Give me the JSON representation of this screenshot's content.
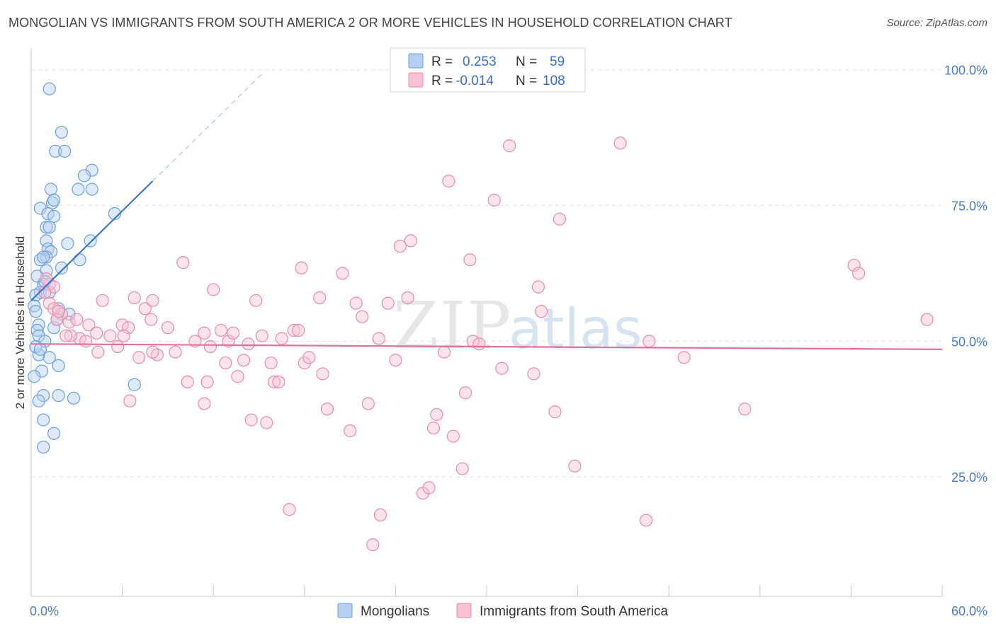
{
  "title": "MONGOLIAN VS IMMIGRANTS FROM SOUTH AMERICA 2 OR MORE VEHICLES IN HOUSEHOLD CORRELATION CHART",
  "source": "Source: ZipAtlas.com",
  "watermark": {
    "zip": "ZIP",
    "atlas": "atlas"
  },
  "chart_data": {
    "type": "scatter",
    "title": "MONGOLIAN VS IMMIGRANTS FROM SOUTH AMERICA 2 OR MORE VEHICLES IN HOUSEHOLD CORRELATION CHART",
    "xlabel": "",
    "ylabel": "2 or more Vehicles in Household",
    "xlim": [
      0,
      60
    ],
    "ylim": [
      3,
      104
    ],
    "x_tick_labels": {
      "min": "0.0%",
      "max": "60.0%"
    },
    "y_ticks": [
      {
        "value": 25,
        "label": "25.0%"
      },
      {
        "value": 50,
        "label": "50.0%"
      },
      {
        "value": 75,
        "label": "75.0%"
      },
      {
        "value": 100,
        "label": "100.0%"
      }
    ],
    "legend": {
      "r_label": "R =",
      "n_label": "N =",
      "entries": [
        {
          "r": "0.253",
          "n": "59"
        },
        {
          "r": "-0.014",
          "n": "108"
        }
      ]
    },
    "series": [
      {
        "name": "Mongolians",
        "color": "#6a9fe0",
        "fill": "#b6cff2",
        "trend": {
          "x0": 0,
          "y0": 57.5,
          "x1": 8.0,
          "y1": 79.5,
          "dash_to_x": 15.3,
          "dash_to_y": 99.5,
          "color": "#3a78d0"
        },
        "points": [
          [
            1.2,
            96.5
          ],
          [
            2.0,
            88.5
          ],
          [
            1.6,
            85.0
          ],
          [
            2.2,
            85.0
          ],
          [
            4.0,
            81.5
          ],
          [
            3.5,
            80.5
          ],
          [
            1.3,
            78.0
          ],
          [
            3.1,
            78.0
          ],
          [
            4.0,
            78.0
          ],
          [
            1.4,
            75.5
          ],
          [
            1.5,
            76.0
          ],
          [
            0.6,
            74.5
          ],
          [
            1.1,
            73.5
          ],
          [
            1.5,
            73.0
          ],
          [
            1.0,
            71.0
          ],
          [
            1.2,
            71.0
          ],
          [
            5.5,
            73.5
          ],
          [
            1.0,
            68.5
          ],
          [
            2.4,
            68.0
          ],
          [
            3.9,
            68.5
          ],
          [
            1.1,
            67.0
          ],
          [
            1.3,
            66.5
          ],
          [
            1.0,
            65.5
          ],
          [
            0.6,
            65.0
          ],
          [
            0.8,
            65.5
          ],
          [
            3.2,
            65.0
          ],
          [
            1.0,
            63.0
          ],
          [
            0.8,
            60.5
          ],
          [
            0.6,
            59.0
          ],
          [
            1.2,
            59.0
          ],
          [
            0.3,
            58.5
          ],
          [
            0.2,
            56.5
          ],
          [
            1.8,
            56.0
          ],
          [
            2.5,
            55.0
          ],
          [
            0.3,
            55.5
          ],
          [
            0.5,
            53.0
          ],
          [
            0.4,
            52.0
          ],
          [
            0.5,
            51.0
          ],
          [
            0.9,
            50.0
          ],
          [
            0.5,
            47.5
          ],
          [
            1.2,
            47.0
          ],
          [
            1.8,
            45.5
          ],
          [
            0.7,
            44.5
          ],
          [
            0.2,
            43.5
          ],
          [
            6.8,
            42.0
          ],
          [
            0.8,
            40.0
          ],
          [
            1.8,
            40.0
          ],
          [
            2.8,
            39.5
          ],
          [
            0.5,
            39.0
          ],
          [
            0.8,
            35.5
          ],
          [
            1.5,
            33.0
          ],
          [
            0.8,
            30.5
          ],
          [
            0.3,
            49.0
          ],
          [
            0.6,
            48.5
          ],
          [
            1.5,
            52.5
          ],
          [
            0.9,
            61.0
          ],
          [
            2.0,
            63.5
          ],
          [
            0.4,
            62.0
          ],
          [
            1.7,
            54.0
          ]
        ]
      },
      {
        "name": "Immigrants from South America",
        "color": "#e98aaa",
        "fill": "#f7c3d3",
        "trend": {
          "x0": 0,
          "y0": 49.5,
          "x1": 60,
          "y1": 48.5,
          "color": "#e2709a"
        },
        "points": [
          [
            1.2,
            60.5
          ],
          [
            1.0,
            61.5
          ],
          [
            1.5,
            60.0
          ],
          [
            0.9,
            59.0
          ],
          [
            1.2,
            57.0
          ],
          [
            1.5,
            56.0
          ],
          [
            2.0,
            55.0
          ],
          [
            1.7,
            54.0
          ],
          [
            2.5,
            53.5
          ],
          [
            3.0,
            54.0
          ],
          [
            3.8,
            53.0
          ],
          [
            4.7,
            57.5
          ],
          [
            5.2,
            51.0
          ],
          [
            4.3,
            51.5
          ],
          [
            3.2,
            50.5
          ],
          [
            2.6,
            51.0
          ],
          [
            3.6,
            50.0
          ],
          [
            4.4,
            48.0
          ],
          [
            6.0,
            53.0
          ],
          [
            6.4,
            52.5
          ],
          [
            6.1,
            51.0
          ],
          [
            5.7,
            49.0
          ],
          [
            6.8,
            58.0
          ],
          [
            7.5,
            56.0
          ],
          [
            7.9,
            54.0
          ],
          [
            8.0,
            57.5
          ],
          [
            7.1,
            47.0
          ],
          [
            8.3,
            47.5
          ],
          [
            9.0,
            52.5
          ],
          [
            8.0,
            48.0
          ],
          [
            9.5,
            48.0
          ],
          [
            10.0,
            64.5
          ],
          [
            10.3,
            42.5
          ],
          [
            10.8,
            50.0
          ],
          [
            11.4,
            51.5
          ],
          [
            11.4,
            38.5
          ],
          [
            11.6,
            42.5
          ],
          [
            11.8,
            49.0
          ],
          [
            12.0,
            59.5
          ],
          [
            12.5,
            52.0
          ],
          [
            12.8,
            46.0
          ],
          [
            13.0,
            50.0
          ],
          [
            13.3,
            51.5
          ],
          [
            13.6,
            43.5
          ],
          [
            14.3,
            49.5
          ],
          [
            14.0,
            46.5
          ],
          [
            14.5,
            35.5
          ],
          [
            14.8,
            57.5
          ],
          [
            15.2,
            51.0
          ],
          [
            15.5,
            35.0
          ],
          [
            15.8,
            46.0
          ],
          [
            16.0,
            42.5
          ],
          [
            16.3,
            42.5
          ],
          [
            16.5,
            50.5
          ],
          [
            17.0,
            19.0
          ],
          [
            17.3,
            52.0
          ],
          [
            17.6,
            52.0
          ],
          [
            17.8,
            63.5
          ],
          [
            18.0,
            46.0
          ],
          [
            18.3,
            47.0
          ],
          [
            19.0,
            58.0
          ],
          [
            19.2,
            44.0
          ],
          [
            19.5,
            37.5
          ],
          [
            20.5,
            62.5
          ],
          [
            21.0,
            33.5
          ],
          [
            21.4,
            57.0
          ],
          [
            21.8,
            54.5
          ],
          [
            22.2,
            38.5
          ],
          [
            22.5,
            12.5
          ],
          [
            22.9,
            50.5
          ],
          [
            23.0,
            18.0
          ],
          [
            23.5,
            57.0
          ],
          [
            24.0,
            46.5
          ],
          [
            24.3,
            67.5
          ],
          [
            24.8,
            58.0
          ],
          [
            25.0,
            68.5
          ],
          [
            25.8,
            22.0
          ],
          [
            26.2,
            23.0
          ],
          [
            26.5,
            34.0
          ],
          [
            26.7,
            36.5
          ],
          [
            27.2,
            48.0
          ],
          [
            27.5,
            79.5
          ],
          [
            27.8,
            32.5
          ],
          [
            28.4,
            26.5
          ],
          [
            28.6,
            40.5
          ],
          [
            28.9,
            65.0
          ],
          [
            29.1,
            50.0
          ],
          [
            29.5,
            49.5
          ],
          [
            30.5,
            76.0
          ],
          [
            31.0,
            45.0
          ],
          [
            31.5,
            86.0
          ],
          [
            33.1,
            44.0
          ],
          [
            33.4,
            60.0
          ],
          [
            33.6,
            55.5
          ],
          [
            34.5,
            37.0
          ],
          [
            34.8,
            72.5
          ],
          [
            35.8,
            27.0
          ],
          [
            38.8,
            86.5
          ],
          [
            40.5,
            17.0
          ],
          [
            40.7,
            50.0
          ],
          [
            43.0,
            47.0
          ],
          [
            47.0,
            37.5
          ],
          [
            54.2,
            64.0
          ],
          [
            54.5,
            62.5
          ],
          [
            59.0,
            54.0
          ],
          [
            1.8,
            55.5
          ],
          [
            2.3,
            51.0
          ],
          [
            6.5,
            39.0
          ]
        ]
      }
    ]
  }
}
